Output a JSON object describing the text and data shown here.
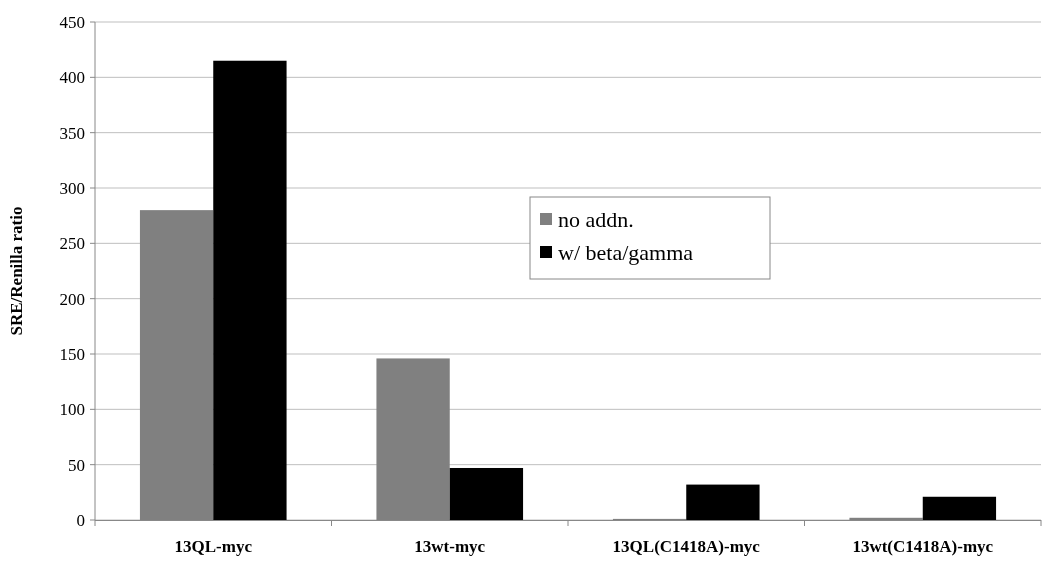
{
  "chart_data": {
    "type": "bar",
    "ylabel": "SRE/Renilla ratio",
    "categories": [
      "13QL-myc",
      "13wt-myc",
      "13QL(C1418A)-myc",
      "13wt(C1418A)-myc"
    ],
    "series": [
      {
        "name": "no addn.",
        "color": "#808080",
        "values": [
          280,
          146,
          1,
          2
        ]
      },
      {
        "name": "w/ beta/gamma",
        "color": "#000000",
        "values": [
          415,
          47,
          32,
          21
        ]
      }
    ],
    "ylim": [
      0,
      450
    ],
    "yticks": [
      0,
      50,
      100,
      150,
      200,
      250,
      300,
      350,
      400,
      450
    ],
    "grid": "y",
    "legend": "center"
  }
}
